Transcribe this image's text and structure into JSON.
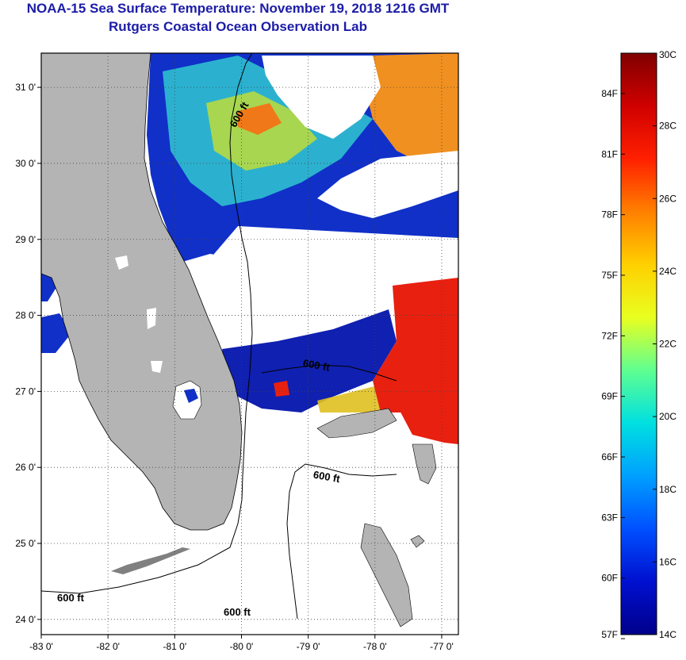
{
  "title": {
    "line1": "NOAA-15 Sea Surface Temperature:  November 19, 2018 1216 GMT",
    "line2": "Rutgers Coastal Ocean Observation Lab"
  },
  "map": {
    "lon_ticks": [
      {
        "value": -83,
        "label": "-83 0'"
      },
      {
        "value": -82,
        "label": "-82 0'"
      },
      {
        "value": -81,
        "label": "-81 0'"
      },
      {
        "value": -80,
        "label": "-80 0'"
      },
      {
        "value": -79,
        "label": "-79 0'"
      },
      {
        "value": -78,
        "label": "-78 0'"
      },
      {
        "value": -77,
        "label": "-77 0'"
      }
    ],
    "lat_ticks": [
      {
        "value": 31,
        "label": "31 0'"
      },
      {
        "value": 30,
        "label": "30 0'"
      },
      {
        "value": 29,
        "label": "29 0'"
      },
      {
        "value": 28,
        "label": "28 0'"
      },
      {
        "value": 27,
        "label": "27 0'"
      },
      {
        "value": 26,
        "label": "26 0'"
      },
      {
        "value": 25,
        "label": "25 0'"
      },
      {
        "value": 24,
        "label": "24 0'"
      }
    ],
    "contour_labels": [
      "600 ft",
      "600 ft",
      "600 ft",
      "600 ft",
      "600 ft"
    ],
    "colors": {
      "land": "#b4b4b4",
      "cloud": "#ffffff",
      "contour": "#000000",
      "grid": "#444444"
    }
  },
  "colorbar": {
    "celsius_labels": [
      "30C",
      "28C",
      "26C",
      "24C",
      "22C",
      "20C",
      "18C",
      "16C",
      "14C"
    ],
    "fahrenheit_labels": [
      "84F",
      "81F",
      "78F",
      "75F",
      "72F",
      "69F",
      "66F",
      "63F",
      "60F",
      "57F"
    ],
    "gradient_top_to_bottom": [
      "#800000",
      "#d00000",
      "#ff2000",
      "#ff8000",
      "#ffd000",
      "#e8ff20",
      "#60ff90",
      "#00e0e0",
      "#00a0ff",
      "#0050ff",
      "#0010d0",
      "#00008a"
    ]
  }
}
